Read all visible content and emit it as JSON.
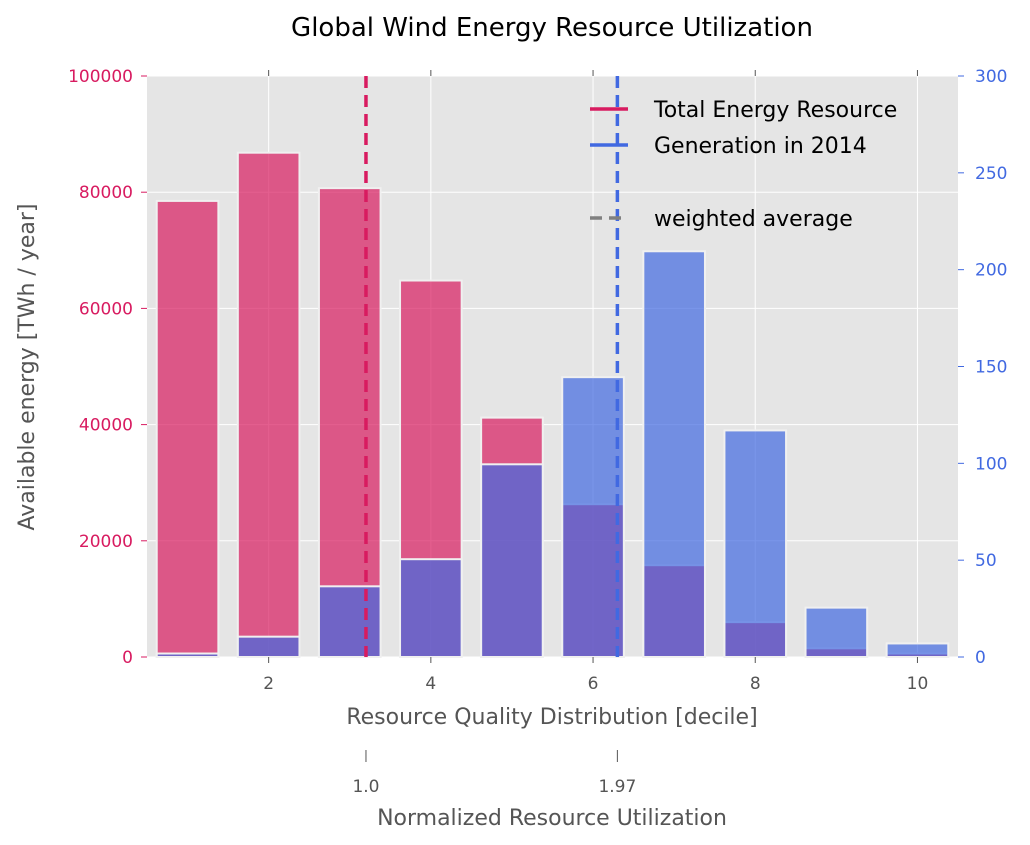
{
  "chart_data": {
    "type": "bar",
    "title": "Global Wind Energy Resource Utilization",
    "xlabel": "Resource Quality Distribution [decile]",
    "ylabel": "Available energy [TWh / year]",
    "secondary_xlabel": "Normalized Resource Utilization",
    "categories": [
      1,
      2,
      3,
      4,
      5,
      6,
      7,
      8,
      9,
      10
    ],
    "x_ticks": [
      "2",
      "4",
      "6",
      "8",
      "10"
    ],
    "xlim": [
      0.5,
      10.5
    ],
    "ylim": [
      0,
      100000
    ],
    "y2lim": [
      0,
      300
    ],
    "y_ticks": [
      "0",
      "20000",
      "40000",
      "60000",
      "80000",
      "100000"
    ],
    "y2_ticks": [
      "0",
      "50",
      "100",
      "150",
      "200",
      "250",
      "300"
    ],
    "secondary_x_ticks": [
      {
        "label": "1.0",
        "at_decile": 3.2
      },
      {
        "label": "1.97",
        "at_decile": 6.3
      }
    ],
    "series": [
      {
        "name": "Total Energy Resource",
        "axis": "left",
        "color": "#d81b60",
        "values": [
          78500,
          86800,
          80700,
          64800,
          41200,
          26300,
          15800,
          6000,
          1500,
          600
        ]
      },
      {
        "name": "Generation in 2014",
        "axis": "right",
        "color": "#4169e1",
        "values": [
          1.8,
          10.5,
          36.5,
          50.5,
          99.5,
          144.5,
          209.5,
          117,
          25.5,
          7
        ]
      }
    ],
    "weighted_average": {
      "label": "weighted average",
      "lines": [
        {
          "series": "Total Energy Resource",
          "x": 3.2,
          "color": "#d81b60"
        },
        {
          "series": "Generation in 2014",
          "x": 6.3,
          "color": "#4169e1"
        }
      ]
    },
    "grid": true,
    "legend_position": "top-right",
    "colors": {
      "resource": "#d81b60",
      "generation": "#4169e1",
      "overlap": "#6a5acd",
      "background": "#e5e5e5",
      "weighted": "#808080"
    }
  }
}
